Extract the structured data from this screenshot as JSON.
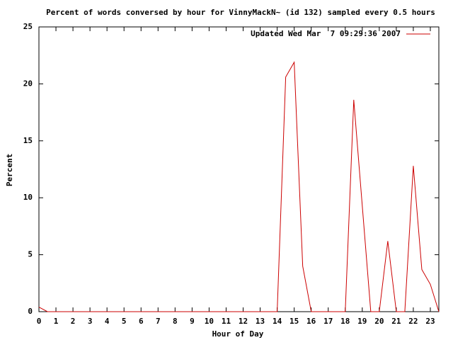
{
  "chart_data": {
    "type": "line",
    "title": "Percent of words conversed by hour for VinnyMackN~ (id 132) sampled every 0.5 hours",
    "x_label": "Hour of Day",
    "y_label": "Percent",
    "x": [
      0,
      0.5,
      1,
      1.5,
      2,
      2.5,
      3,
      3.5,
      4,
      4.5,
      5,
      5.5,
      6,
      6.5,
      7,
      7.5,
      8,
      8.5,
      9,
      9.5,
      10,
      10.5,
      11,
      11.5,
      12,
      12.5,
      13,
      13.5,
      14,
      14.5,
      15,
      15.5,
      16,
      16.5,
      17,
      17.5,
      18,
      18.5,
      19,
      19.5,
      20,
      20.5,
      21,
      21.5,
      22,
      22.5,
      23,
      23.5
    ],
    "series": [
      {
        "name": "Updated Wed Mar  7 09:29:36 2007",
        "color": "#cc0000",
        "values": [
          0.4,
          0,
          0,
          0,
          0,
          0,
          0,
          0,
          0,
          0,
          0,
          0,
          0,
          0,
          0,
          0,
          0,
          0,
          0,
          0,
          0,
          0,
          0,
          0,
          0,
          0,
          0,
          0,
          0,
          20.6,
          21.9,
          4,
          0,
          0,
          0,
          0,
          0,
          18.6,
          9.3,
          0,
          0,
          6.2,
          0,
          0,
          12.8,
          3.7,
          2.4,
          0
        ]
      }
    ],
    "xlim": [
      0,
      23.5
    ],
    "ylim": [
      0,
      25
    ],
    "xticks": [
      0,
      1,
      2,
      3,
      4,
      5,
      6,
      7,
      8,
      9,
      10,
      11,
      12,
      13,
      14,
      15,
      16,
      17,
      18,
      19,
      20,
      21,
      22,
      23
    ],
    "yticks": [
      0,
      5,
      10,
      15,
      20,
      25
    ],
    "grid": false,
    "legend": "top-right"
  }
}
